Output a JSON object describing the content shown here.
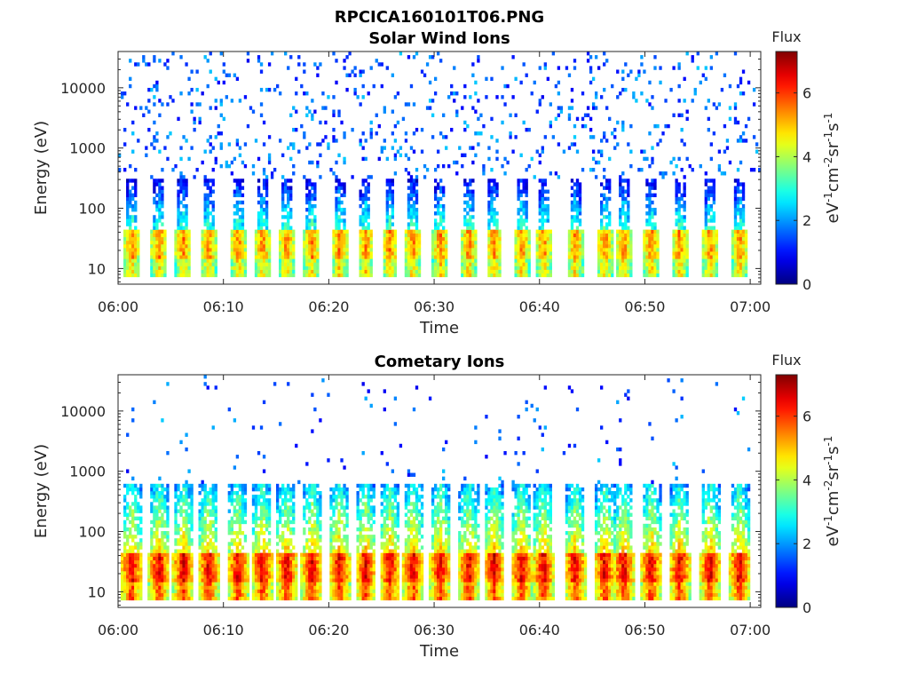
{
  "figure": {
    "title": "RPCICA160101T06.PNG"
  },
  "chart_data": [
    {
      "type": "heatmap",
      "title": "Solar Wind Ions",
      "xlabel": "Time",
      "ylabel": "Energy (eV)",
      "x_tick_labels": [
        "06:00",
        "06:10",
        "06:20",
        "06:30",
        "06:40",
        "06:50",
        "07:00"
      ],
      "x_ticks_minutes": [
        0,
        10,
        20,
        30,
        40,
        50,
        60
      ],
      "xlim_minutes": [
        0,
        61
      ],
      "y_scale": "log",
      "ylim": [
        5.5,
        40000
      ],
      "y_tick_labels": [
        "10",
        "100",
        "1000",
        "10000"
      ],
      "y_ticks": [
        10,
        100,
        1000,
        10000
      ],
      "colorbar": {
        "title": "Flux",
        "label": "eV-1cm-2sr-1s-1",
        "range": [
          0,
          7.3
        ],
        "tick_labels": [
          "0",
          "2",
          "4",
          "6"
        ],
        "ticks": [
          0,
          2,
          4,
          6
        ],
        "colormap": "jet"
      },
      "pulse_minutes": [
        1.3,
        3.9,
        6.2,
        8.6,
        11.4,
        13.7,
        16.0,
        18.4,
        21.0,
        23.5,
        25.8,
        28.0,
        30.6,
        33.3,
        35.7,
        38.3,
        40.4,
        43.4,
        46.2,
        48.0,
        50.6,
        53.3,
        56.2,
        59.0
      ],
      "band_energy_eV": [
        14,
        45
      ],
      "peak_flux": 5.5
    },
    {
      "type": "heatmap",
      "title": "Cometary Ions",
      "xlabel": "Time",
      "ylabel": "Energy (eV)",
      "x_tick_labels": [
        "06:00",
        "06:10",
        "06:20",
        "06:30",
        "06:40",
        "06:50",
        "07:00"
      ],
      "x_ticks_minutes": [
        0,
        10,
        20,
        30,
        40,
        50,
        60
      ],
      "xlim_minutes": [
        0,
        61
      ],
      "y_scale": "log",
      "ylim": [
        5.5,
        40000
      ],
      "y_tick_labels": [
        "10",
        "100",
        "1000",
        "10000"
      ],
      "y_ticks": [
        10,
        100,
        1000,
        10000
      ],
      "colorbar": {
        "title": "Flux",
        "label": "eV-1cm-2sr-1s-1",
        "range": [
          0,
          7.3
        ],
        "tick_labels": [
          "0",
          "2",
          "4",
          "6"
        ],
        "ticks": [
          0,
          2,
          4,
          6
        ],
        "colormap": "jet"
      },
      "pulse_minutes": [
        1.3,
        3.9,
        6.2,
        8.6,
        11.4,
        13.7,
        16.0,
        18.4,
        21.0,
        23.5,
        25.8,
        28.0,
        30.6,
        33.3,
        35.7,
        38.3,
        40.4,
        43.4,
        46.2,
        48.0,
        50.6,
        53.3,
        56.2,
        59.0
      ],
      "band_energy_eV": [
        14,
        45
      ],
      "peak_flux": 6.6
    }
  ]
}
